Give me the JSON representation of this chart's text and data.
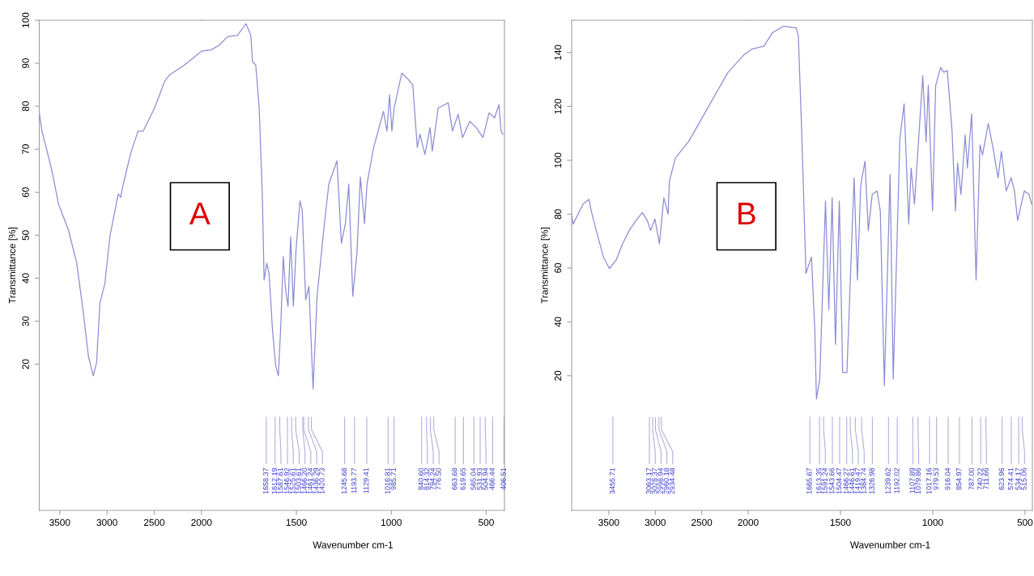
{
  "chart_data": [
    {
      "type": "line",
      "ylabel": "Transmittance [%]",
      "xlim": [
        3717,
        2000
      ],
      "xticks": [
        3500,
        3000,
        2500,
        2000
      ],
      "ylim": [
        -14,
        100
      ],
      "yticks": [
        20,
        30,
        40,
        50,
        60,
        70,
        80,
        90,
        100
      ],
      "tick_labels": true,
      "annotations": [
        "A"
      ],
      "series": [
        {
          "color": "#8c8cd6",
          "x": [
            3717,
            3689,
            3653,
            3583,
            3514,
            3408,
            3320,
            3250,
            3197,
            3145,
            3110,
            3075,
            3022,
            2970,
            2881,
            2854,
            2839,
            2794,
            2742,
            2671,
            2618,
            2496,
            2390,
            2338,
            2180,
            2004,
            2000
          ],
          "values": [
            78.5,
            74.2,
            71.2,
            65,
            57.3,
            51.2,
            43.5,
            31.9,
            21.9,
            17.3,
            20.4,
            34.2,
            38.8,
            49.6,
            59.6,
            58.8,
            60.8,
            65,
            69.6,
            74.2,
            74.2,
            79.6,
            85.8,
            87.3,
            89.6,
            92.7,
            92.8
          ]
        }
      ]
    },
    {
      "type": "line",
      "xlabel": "Wavenumber cm-1",
      "xlim": [
        2000,
        404
      ],
      "xticks": [
        1500,
        1000,
        500
      ],
      "ylim": [
        -14,
        100
      ],
      "tick_labels": "x",
      "annotations": [
        "1658.37",
        "1612.19",
        "1587.61",
        "1546.92",
        "1525.61",
        "1503.61",
        "1466.20",
        "1461.24",
        "1436.29",
        "1420.73",
        "1245.68",
        "1193.77",
        "1129.41",
        "1016.81",
        "985.71",
        "840.60",
        "814.32",
        "794.24",
        "776.50",
        "663.68",
        "619.65",
        "565.04",
        "531.93",
        "504.94",
        "466.44",
        "406.51"
      ],
      "series": [
        {
          "color": "#8c8cd6",
          "x": [
            2000,
            1950,
            1906,
            1862,
            1810,
            1766,
            1740,
            1731,
            1714,
            1696,
            1679,
            1670,
            1656,
            1644,
            1626,
            1609,
            1595,
            1583,
            1569,
            1557,
            1544,
            1530,
            1516,
            1502,
            1481,
            1469,
            1451,
            1434,
            1412,
            1391,
            1356,
            1329,
            1286,
            1263,
            1242,
            1224,
            1203,
            1181,
            1163,
            1141,
            1128,
            1093,
            1041,
            1023,
            1009,
            997,
            985,
            945,
            910,
            887,
            863,
            849,
            823,
            796,
            784,
            753,
            700,
            678,
            648,
            625,
            587,
            552,
            517,
            485,
            456,
            433,
            422,
            412
          ],
          "values": [
            92.8,
            93.1,
            94.2,
            96.2,
            96.5,
            99.2,
            96.5,
            90.4,
            89.6,
            79.6,
            58.8,
            39.6,
            43.5,
            41.2,
            28.1,
            19.6,
            17.3,
            28.1,
            45,
            37.3,
            33.5,
            49.6,
            33.5,
            46.5,
            58,
            55.8,
            35,
            38.1,
            14.2,
            35.8,
            51.2,
            61.9,
            67.3,
            48.1,
            52.7,
            61.9,
            35.8,
            45.8,
            63.5,
            52.7,
            61.9,
            70.4,
            78.8,
            74.2,
            82.7,
            74.2,
            79.6,
            87.7,
            86.2,
            85,
            70.4,
            73.5,
            68.8,
            75,
            69.6,
            79.6,
            80.8,
            74.2,
            78.1,
            72.7,
            76.5,
            75,
            72.7,
            78.5,
            77.3,
            80.4,
            74.2,
            73.5
          ]
        }
      ]
    },
    {
      "type": "line",
      "ylabel": "Transmittance [%]",
      "xlim": [
        3900,
        2000
      ],
      "xticks": [
        3500,
        3000,
        2500,
        2000
      ],
      "ylim": [
        -30,
        152
      ],
      "yticks": [
        20,
        40,
        60,
        80,
        100,
        120,
        140
      ],
      "tick_labels": true,
      "annotations": [
        "B",
        "3455.71",
        "3063.17",
        "3028.37",
        "2998.94",
        "2960.18",
        "2934.48"
      ],
      "series": [
        {
          "color": "#8c8cd6",
          "x": [
            3900,
            3884,
            3831,
            3777,
            3714,
            3689,
            3635,
            3558,
            3494,
            3422,
            3352,
            3281,
            3209,
            3139,
            3085,
            3050,
            3004,
            2955,
            2908,
            2862,
            2848,
            2784,
            2642,
            2500,
            2359,
            2216,
            2039,
            2000
          ],
          "values": [
            80,
            76.3,
            80,
            83.7,
            85.5,
            81.2,
            73.9,
            64.1,
            59.8,
            62.9,
            69,
            73.9,
            77.6,
            80.6,
            77.6,
            73.9,
            78.2,
            69,
            86.1,
            80,
            92.2,
            100.8,
            106.9,
            115.5,
            124.1,
            132.7,
            139.4,
            140.2
          ]
        }
      ]
    },
    {
      "type": "line",
      "xlabel": "Wavenumber cm-1",
      "xlim": [
        2000,
        460
      ],
      "xticks": [
        1500,
        1000,
        500
      ],
      "ylim": [
        -30,
        152
      ],
      "tick_labels": "x",
      "annotations": [
        "1665.67",
        "1613.35",
        "1591.24",
        "1543.66",
        "1504.47",
        "1466.27",
        "1446.61",
        "1419.47",
        "1384.74",
        "1326.98",
        "1239.62",
        "1192.02",
        "1107.89",
        "1079.86",
        "1017.16",
        "979.53",
        "916.04",
        "854.97",
        "787.00",
        "740.22",
        "711.66",
        "623.96",
        "574.41",
        "534.17",
        "515.06"
      ],
      "series": [
        {
          "color": "#8c8cd6",
          "x": [
            2000,
            1983,
            1914,
            1870,
            1808,
            1740,
            1728,
            1710,
            1687,
            1657,
            1639,
            1630,
            1612,
            1581,
            1563,
            1545,
            1527,
            1506,
            1488,
            1465,
            1426,
            1408,
            1390,
            1367,
            1349,
            1328,
            1302,
            1284,
            1262,
            1231,
            1214,
            1178,
            1155,
            1130,
            1117,
            1099,
            1054,
            1036,
            1024,
            1001,
            984,
            957,
            940,
            921,
            895,
            877,
            865,
            847,
            824,
            812,
            789,
            765,
            744,
            730,
            699,
            673,
            646,
            628,
            602,
            575,
            557,
            540,
            504,
            478,
            464
          ],
          "values": [
            140.2,
            141.2,
            142.4,
            147.3,
            149.8,
            149.2,
            146.1,
            110.6,
            58,
            64.1,
            37.1,
            11.4,
            18.8,
            84.9,
            44.5,
            86.1,
            31.6,
            84.9,
            21.2,
            21.2,
            93.5,
            55.5,
            91,
            99.6,
            73.9,
            87.3,
            88.6,
            81.2,
            16.3,
            94.7,
            18.8,
            108.2,
            121,
            76.3,
            97.1,
            83.7,
            131.4,
            106.9,
            127.8,
            81.2,
            127.8,
            134.5,
            132.7,
            133.3,
            110.6,
            81.2,
            99,
            87.3,
            109.4,
            97.1,
            117.3,
            55.5,
            105.7,
            102,
            113.7,
            104.5,
            93.5,
            103.3,
            88.6,
            93.5,
            88.6,
            77.6,
            88.6,
            87.3,
            83.7
          ]
        }
      ]
    }
  ]
}
